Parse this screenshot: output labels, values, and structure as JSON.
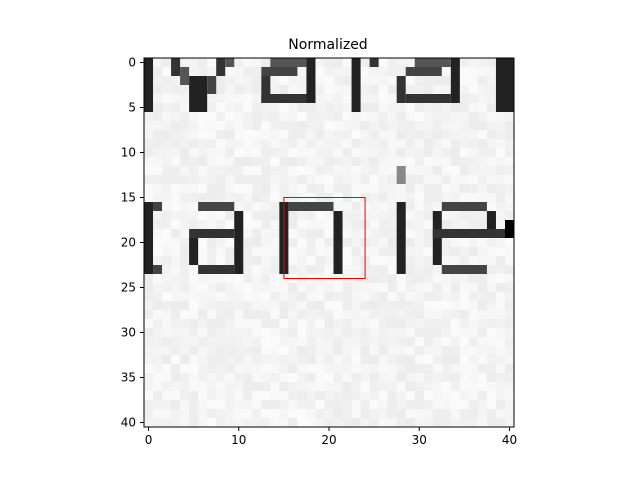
{
  "chart_data": {
    "type": "heatmap",
    "title": "Normalized",
    "xlabel": "",
    "ylabel": "",
    "x_range": [
      -0.5,
      40.5
    ],
    "y_range": [
      -0.5,
      40.5
    ],
    "y_inverted": true,
    "grid": false,
    "colormap": "gray",
    "x_ticks": [
      0,
      10,
      20,
      30,
      40
    ],
    "y_ticks": [
      0,
      5,
      10,
      15,
      20,
      25,
      30,
      35,
      40
    ],
    "image_description": "Cropped grayscale scan of printed text. Top rows 0–6 show the lower half of the letters of a word (fragments such as 'valid'); rows ~15–25 show the letters 'anie' (as in 'Daniel'). Background is near-white.",
    "annotations": [
      {
        "type": "rectangle",
        "x0": 15,
        "y0": 15,
        "x1": 24,
        "y1": 24,
        "color": "#e8000b"
      }
    ]
  }
}
